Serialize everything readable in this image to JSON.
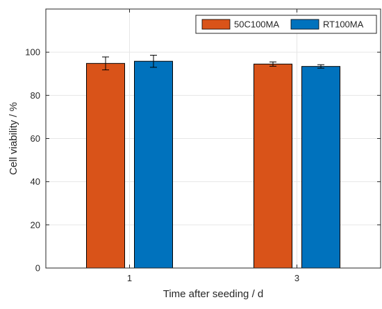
{
  "chart_data": {
    "type": "bar",
    "title": "",
    "xlabel": "Time after seeding / d",
    "ylabel": "Cell viability / %",
    "categories": [
      "1",
      "3"
    ],
    "ylim": [
      0,
      120
    ],
    "yticks": [
      0,
      20,
      40,
      60,
      80,
      100
    ],
    "grid": true,
    "legend_position": "top-right",
    "series": [
      {
        "name": "50C100MA",
        "color": "#D95319",
        "values": [
          94.8,
          94.5
        ],
        "errors": [
          3.0,
          1.0
        ]
      },
      {
        "name": "RT100MA",
        "color": "#0072BD",
        "values": [
          95.8,
          93.4
        ],
        "errors": [
          2.8,
          0.8
        ]
      }
    ]
  }
}
